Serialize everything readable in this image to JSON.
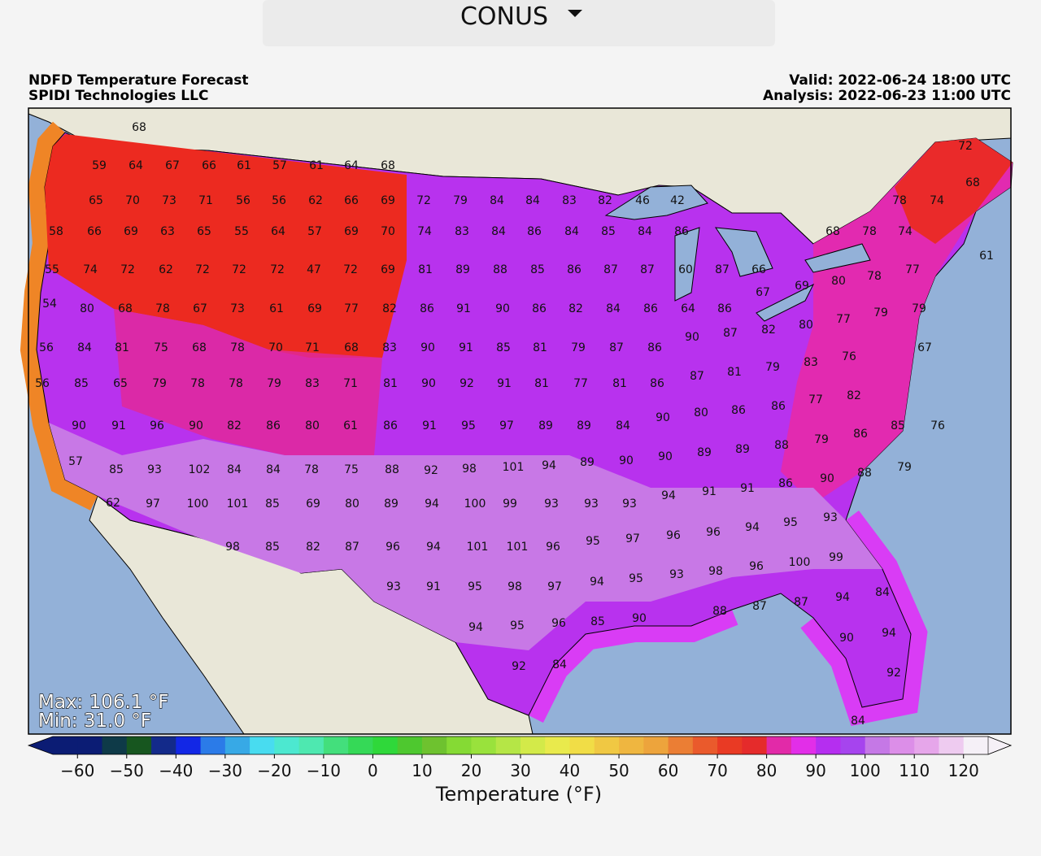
{
  "dropdown": {
    "label": "CONUS"
  },
  "header": {
    "title": "NDFD Temperature Forecast",
    "source": "SPIDI Technologies LLC",
    "valid": "Valid: 2022-06-24 18:00 UTC",
    "analysis": "Analysis: 2022-06-23 11:00 UTC"
  },
  "map": {
    "max_label": "Max: 106.1 °F",
    "min_label": "Min: 31.0 °F",
    "temperatures": [
      68,
      59,
      64,
      67,
      66,
      61,
      57,
      61,
      64,
      68,
      65,
      70,
      73,
      71,
      56,
      56,
      62,
      66,
      69,
      72,
      79,
      84,
      84,
      83,
      82,
      46,
      42,
      78,
      74,
      72,
      68,
      58,
      66,
      69,
      63,
      65,
      55,
      64,
      57,
      69,
      70,
      74,
      83,
      84,
      86,
      84,
      85,
      84,
      86,
      68,
      78,
      74,
      61,
      55,
      74,
      72,
      62,
      72,
      72,
      72,
      47,
      72,
      69,
      81,
      89,
      88,
      85,
      86,
      87,
      87,
      60,
      87,
      66,
      77,
      80,
      78,
      69,
      67,
      54,
      80,
      68,
      78,
      67,
      73,
      61,
      69,
      77,
      82,
      86,
      91,
      90,
      86,
      82,
      84,
      86,
      64,
      86,
      79,
      77,
      79,
      80,
      90,
      87,
      82,
      56,
      84,
      81,
      75,
      68,
      78,
      70,
      71,
      68,
      83,
      90,
      91,
      85,
      81,
      79,
      87,
      86,
      67,
      76,
      83,
      79,
      87,
      81,
      56,
      85,
      65,
      79,
      78,
      78,
      79,
      83,
      71,
      81,
      90,
      92,
      91,
      81,
      77,
      81,
      86,
      82,
      77,
      86,
      86,
      80,
      90,
      90,
      91,
      96,
      90,
      82,
      86,
      80,
      61,
      86,
      91,
      95,
      97,
      89,
      89,
      84,
      85,
      76,
      86,
      79,
      88,
      89,
      89,
      90,
      57,
      90,
      89,
      94,
      101,
      98,
      92,
      85,
      93,
      102,
      84,
      84,
      78,
      75,
      88,
      79,
      88,
      90,
      86,
      91,
      91,
      94,
      93,
      93,
      93,
      99,
      100,
      94,
      89,
      80,
      69,
      85,
      101,
      100,
      97,
      62,
      93,
      95,
      94,
      96,
      96,
      95,
      97,
      96,
      101,
      101,
      94,
      96,
      87,
      82,
      85,
      98,
      99,
      100,
      96,
      98,
      93,
      95,
      94,
      97,
      98,
      95,
      91,
      93,
      84,
      94,
      87,
      87,
      88,
      90,
      85,
      96,
      95,
      94,
      94,
      90,
      84,
      92,
      92,
      84
    ]
  },
  "colorbar": {
    "label": "Temperature (°F)",
    "xlim": [
      -65,
      125
    ],
    "xticks": [
      {
        "value": -60,
        "label": "−60"
      },
      {
        "value": -50,
        "label": "−50"
      },
      {
        "value": -40,
        "label": "−40"
      },
      {
        "value": -30,
        "label": "−30"
      },
      {
        "value": -20,
        "label": "−20"
      },
      {
        "value": -10,
        "label": "−10"
      },
      0,
      10,
      20,
      30,
      40,
      50,
      60,
      70,
      80,
      90,
      100,
      110,
      120
    ],
    "colors": [
      "#0b1c74",
      "#0b1c74",
      "#0e3a48",
      "#17561f",
      "#132a8a",
      "#1227e6",
      "#2b7be8",
      "#37a9e6",
      "#48dcf0",
      "#4ce8d0",
      "#4ee8b0",
      "#43df7c",
      "#35d957",
      "#2fd83a",
      "#4ec82f",
      "#6ec22f",
      "#85da34",
      "#99e23c",
      "#b5e646",
      "#d3ea49",
      "#e9ea4c",
      "#f1dd46",
      "#f0c843",
      "#efb640",
      "#eda43c",
      "#eb7e34",
      "#ea5a2c",
      "#e93a24",
      "#e52b2b",
      "#e22aa8",
      "#e22ee8",
      "#b52ef0",
      "#a644ee",
      "#c578e6",
      "#dc8ee8",
      "#e6a6ea",
      "#eecbf0",
      "#f5f0f7"
    ]
  }
}
